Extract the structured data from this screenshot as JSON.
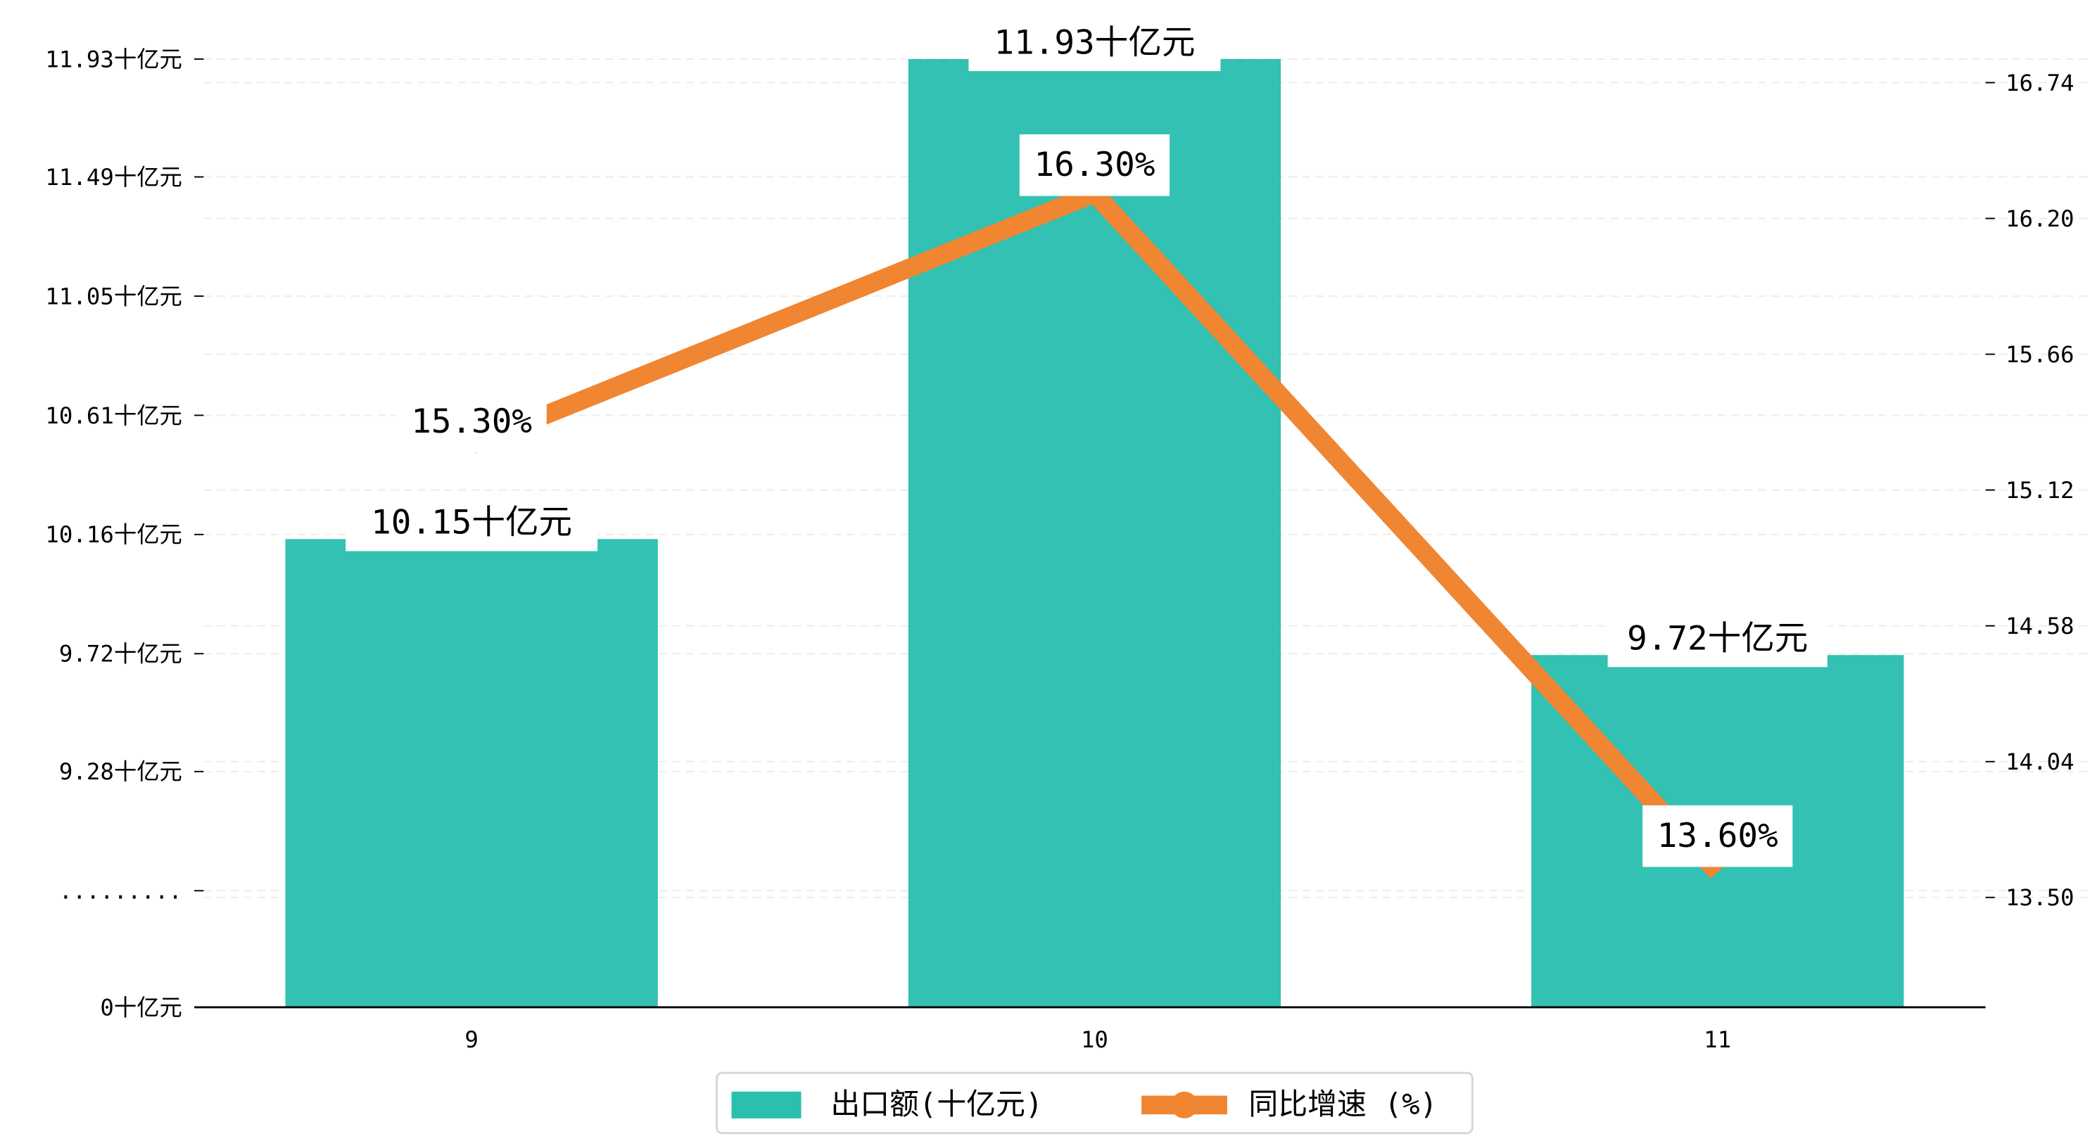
{
  "chart_data": {
    "type": "bar+line",
    "categories": [
      "9",
      "10",
      "11"
    ],
    "series": [
      {
        "name": "出口额(十亿元)",
        "type": "bar",
        "axis": "left",
        "values": [
          10.15,
          11.93,
          9.72
        ],
        "labels": [
          "10.15十亿元",
          "11.93十亿元",
          "9.72十亿元"
        ],
        "color": "#2bbfaf"
      },
      {
        "name": "同比增速 (%)",
        "type": "line",
        "axis": "right",
        "values": [
          15.3,
          16.3,
          13.6
        ],
        "labels": [
          "15.30%",
          "16.30%",
          "13.60%"
        ],
        "color": "#f08532"
      }
    ],
    "left_axis": {
      "ticks": [
        {
          "label": "0十亿元",
          "value": 0
        },
        {
          "label": ".........",
          "value": null
        },
        {
          "label": "9.28十亿元",
          "value": 9.28
        },
        {
          "label": "9.72十亿元",
          "value": 9.72
        },
        {
          "label": "10.16十亿元",
          "value": 10.16
        },
        {
          "label": "10.61十亿元",
          "value": 10.61
        },
        {
          "label": "11.05十亿元",
          "value": 11.05
        },
        {
          "label": "11.49十亿元",
          "value": 11.49
        },
        {
          "label": "11.93十亿元",
          "value": 11.93
        }
      ],
      "broken": true
    },
    "right_axis": {
      "ticks": [
        "13.50",
        "14.04",
        "14.58",
        "15.12",
        "15.66",
        "16.20",
        "16.74"
      ],
      "ylim": [
        13.1,
        17.1
      ]
    },
    "grid": "dashed horizontal",
    "legend": {
      "placement": "bottom-center",
      "entries": [
        "出口额(十亿元)",
        "同比增速 (%)"
      ]
    }
  }
}
